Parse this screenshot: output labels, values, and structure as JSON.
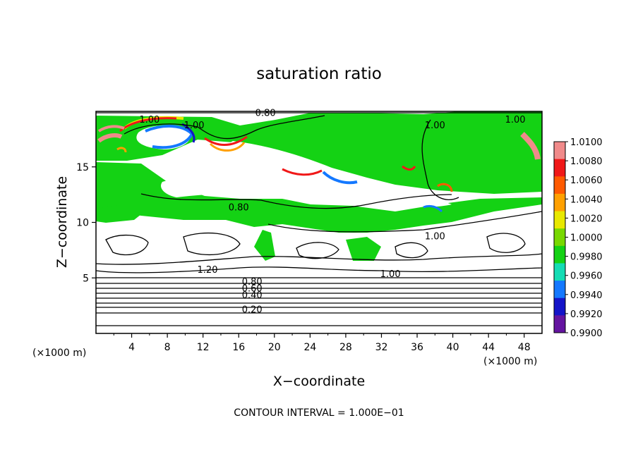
{
  "chart_data": {
    "type": "heatmap",
    "title": "saturation ratio",
    "xlabel": "X−coordinate",
    "ylabel": "Z−coordinate",
    "x_unit": "(×1000 m)",
    "z_unit": "(×1000 m)",
    "xlim": [
      0,
      50
    ],
    "ylim": [
      0,
      20
    ],
    "x_ticks": [
      "4",
      "8",
      "12",
      "16",
      "20",
      "24",
      "28",
      "32",
      "36",
      "40",
      "44",
      "48"
    ],
    "y_ticks": [
      "5",
      "10",
      "15"
    ],
    "footer": "CONTOUR INTERVAL = 1.000E−01",
    "colorbar": {
      "ticks": [
        "1.0100",
        "1.0080",
        "1.0060",
        "1.0040",
        "1.0020",
        "1.0000",
        "0.9980",
        "0.9960",
        "0.9940",
        "0.9920",
        "0.9900"
      ],
      "colors": [
        "#f08a8a",
        "#f01818",
        "#ff5a00",
        "#ffa000",
        "#e8e800",
        "#78d800",
        "#14d214",
        "#14dcb4",
        "#1478ff",
        "#1414c8",
        "#6414a0"
      ]
    },
    "contour_labels": [
      {
        "text": "0.80",
        "x": 19.0,
        "z": 19.7
      },
      {
        "text": "1.00",
        "x": 6.0,
        "z": 19.1
      },
      {
        "text": "1.00",
        "x": 11.0,
        "z": 18.6
      },
      {
        "text": "1.00",
        "x": 38.0,
        "z": 18.6
      },
      {
        "text": "1.00",
        "x": 47.0,
        "z": 19.1
      },
      {
        "text": "0.80",
        "x": 16.0,
        "z": 11.2
      },
      {
        "text": "1.00",
        "x": 38.0,
        "z": 8.6
      },
      {
        "text": "1.00",
        "x": 33.0,
        "z": 5.2
      },
      {
        "text": "1.20",
        "x": 12.5,
        "z": 5.6
      },
      {
        "text": "0.80",
        "x": 17.5,
        "z": 4.5
      },
      {
        "text": "0.60",
        "x": 17.5,
        "z": 3.9
      },
      {
        "text": "0.40",
        "x": 17.5,
        "z": 3.3
      },
      {
        "text": "0.20",
        "x": 17.5,
        "z": 2.0
      }
    ]
  }
}
